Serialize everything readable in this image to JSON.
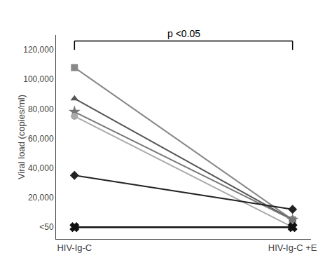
{
  "chart_data": {
    "type": "line",
    "categories": [
      "HIV-Ig-C",
      "HIV-Ig-C +E"
    ],
    "ylabel": "Viral load (copies/ml)",
    "ylim": [
      -8000,
      130000
    ],
    "yticks": [
      {
        "value": 0,
        "label": "<50"
      },
      {
        "value": 20000,
        "label": "20,000"
      },
      {
        "value": 40000,
        "label": "40,000"
      },
      {
        "value": 60000,
        "label": "60,000"
      },
      {
        "value": 80000,
        "label": "80,000"
      },
      {
        "value": 100000,
        "label": "100,000"
      },
      {
        "value": 120000,
        "label": "120,000"
      }
    ],
    "grid": false,
    "series": [
      {
        "color": "#888888",
        "marker": "square",
        "values": [
          108000,
          5000
        ]
      },
      {
        "color": "#555555",
        "marker": "triangle-up",
        "values": [
          87000,
          5000
        ]
      },
      {
        "color": "#777777",
        "marker": "star",
        "values": [
          78000,
          5000
        ]
      },
      {
        "color": "#aaaaaa",
        "marker": "circle",
        "values": [
          75000,
          0
        ]
      },
      {
        "color": "#222222",
        "marker": "diamond",
        "values": [
          35000,
          12000
        ]
      },
      {
        "color": "#111111",
        "marker": "x",
        "values": [
          0,
          0
        ]
      }
    ],
    "annotations": [
      {
        "text": "p <0.05",
        "x_from": "HIV-Ig-C",
        "x_to": "HIV-Ig-C +E",
        "y_from": 120000,
        "y_to": 126000
      }
    ]
  }
}
